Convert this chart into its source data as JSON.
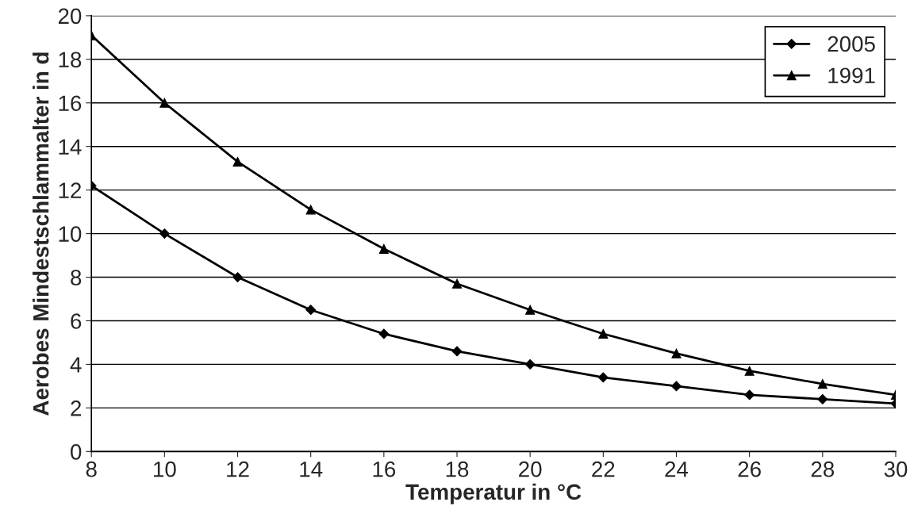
{
  "chart_data": {
    "type": "line",
    "xlabel": "Temperatur in °C",
    "ylabel": "Aerobes Mindestschlammalter in d",
    "x": [
      8,
      10,
      12,
      14,
      16,
      18,
      20,
      22,
      24,
      26,
      28,
      30
    ],
    "series": [
      {
        "name": "2005",
        "color": "#000000",
        "marker": "diamond",
        "values": [
          12.2,
          10.0,
          8.0,
          6.5,
          5.4,
          4.6,
          4.0,
          3.4,
          3.0,
          2.6,
          2.4,
          2.2
        ]
      },
      {
        "name": "1991",
        "color": "#000000",
        "marker": "triangle",
        "values": [
          19.1,
          16.0,
          13.3,
          11.1,
          9.3,
          7.7,
          6.5,
          5.4,
          4.5,
          3.7,
          3.1,
          2.6
        ]
      }
    ],
    "xlim": [
      8,
      30
    ],
    "xticks": [
      8,
      10,
      12,
      14,
      16,
      18,
      20,
      22,
      24,
      26,
      28,
      30
    ],
    "ylim": [
      0,
      20
    ],
    "yticks": [
      0,
      2,
      4,
      6,
      8,
      10,
      12,
      14,
      16,
      18,
      20
    ],
    "grid": "y",
    "legend": "top right",
    "line_style": "solid"
  }
}
